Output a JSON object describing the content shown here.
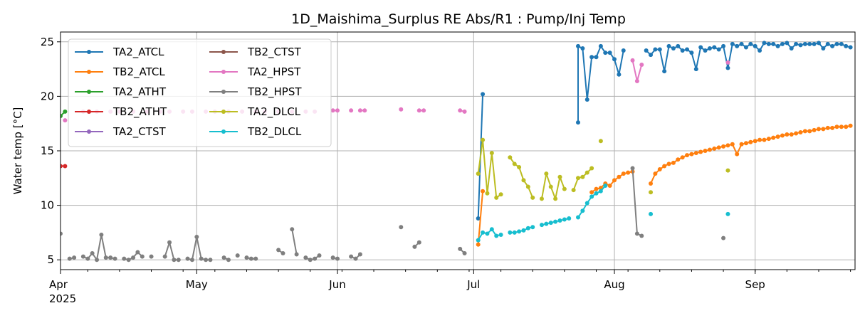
{
  "chart_data": {
    "type": "line",
    "title": "1D_Maishima_Surplus RE Abs/R1 : Pump/Inj Temp",
    "xlabel": "",
    "ylabel": "Water temp [°C]",
    "x_type": "date",
    "xlim": [
      "2025-04-01",
      "2025-09-23"
    ],
    "ylim": [
      4.1,
      25.9
    ],
    "yticks": [
      5,
      10,
      15,
      20,
      25
    ],
    "xticks": [
      {
        "date": "2025-04-01",
        "label": "Apr",
        "sub": "2025"
      },
      {
        "date": "2025-05-01",
        "label": "May",
        "sub": ""
      },
      {
        "date": "2025-06-01",
        "label": "Jun",
        "sub": ""
      },
      {
        "date": "2025-07-01",
        "label": "Jul",
        "sub": ""
      },
      {
        "date": "2025-08-01",
        "label": "Aug",
        "sub": ""
      },
      {
        "date": "2025-09-01",
        "label": "Sep",
        "sub": ""
      }
    ],
    "grid": true,
    "legend_position": "top-left",
    "legend_columns": 2,
    "series": [
      {
        "name": "TA2_ATCL",
        "color": "#1f77b4",
        "points": [
          [
            "2025-07-02",
            8.8
          ],
          [
            "2025-07-03",
            20.2
          ],
          [
            "2025-07-24",
            17.6
          ],
          [
            "2025-07-24",
            24.6
          ],
          [
            "2025-07-25",
            24.4
          ],
          [
            "2025-07-26",
            19.7
          ],
          [
            "2025-07-27",
            23.6
          ],
          [
            "2025-07-28",
            23.6
          ],
          [
            "2025-07-29",
            24.6
          ],
          [
            "2025-07-30",
            24.0
          ],
          [
            "2025-07-31",
            24.0
          ],
          [
            "2025-08-01",
            23.4
          ],
          [
            "2025-08-02",
            22.0
          ],
          [
            "2025-08-03",
            24.2
          ],
          [
            "2025-08-08",
            24.2
          ],
          [
            "2025-08-09",
            23.8
          ],
          [
            "2025-08-10",
            24.3
          ],
          [
            "2025-08-11",
            24.3
          ],
          [
            "2025-08-12",
            22.3
          ],
          [
            "2025-08-13",
            24.6
          ],
          [
            "2025-08-14",
            24.4
          ],
          [
            "2025-08-15",
            24.6
          ],
          [
            "2025-08-16",
            24.2
          ],
          [
            "2025-08-17",
            24.3
          ],
          [
            "2025-08-18",
            24.0
          ],
          [
            "2025-08-19",
            22.5
          ],
          [
            "2025-08-20",
            24.5
          ],
          [
            "2025-08-21",
            24.2
          ],
          [
            "2025-08-22",
            24.4
          ],
          [
            "2025-08-23",
            24.5
          ],
          [
            "2025-08-24",
            24.3
          ],
          [
            "2025-08-25",
            24.6
          ],
          [
            "2025-08-26",
            22.6
          ],
          [
            "2025-08-27",
            24.8
          ],
          [
            "2025-08-28",
            24.6
          ],
          [
            "2025-08-29",
            24.8
          ],
          [
            "2025-08-30",
            24.5
          ],
          [
            "2025-08-31",
            24.8
          ],
          [
            "2025-09-01",
            24.6
          ],
          [
            "2025-09-02",
            24.2
          ],
          [
            "2025-09-03",
            24.9
          ],
          [
            "2025-09-04",
            24.8
          ],
          [
            "2025-09-05",
            24.8
          ],
          [
            "2025-09-06",
            24.6
          ],
          [
            "2025-09-07",
            24.8
          ],
          [
            "2025-09-08",
            24.9
          ],
          [
            "2025-09-09",
            24.4
          ],
          [
            "2025-09-10",
            24.8
          ],
          [
            "2025-09-11",
            24.7
          ],
          [
            "2025-09-12",
            24.8
          ],
          [
            "2025-09-13",
            24.8
          ],
          [
            "2025-09-14",
            24.8
          ],
          [
            "2025-09-15",
            24.9
          ],
          [
            "2025-09-16",
            24.4
          ],
          [
            "2025-09-17",
            24.8
          ],
          [
            "2025-09-18",
            24.6
          ],
          [
            "2025-09-19",
            24.8
          ],
          [
            "2025-09-20",
            24.8
          ],
          [
            "2025-09-21",
            24.6
          ],
          [
            "2025-09-22",
            24.5
          ]
        ]
      },
      {
        "name": "TB2_ATCL",
        "color": "#ff7f0e",
        "points": [
          [
            "2025-07-02",
            6.4
          ],
          [
            "2025-07-03",
            11.3
          ],
          [
            "2025-07-27",
            11.2
          ],
          [
            "2025-07-28",
            11.5
          ],
          [
            "2025-07-29",
            11.6
          ],
          [
            "2025-07-30",
            12.0
          ],
          [
            "2025-07-31",
            11.8
          ],
          [
            "2025-08-01",
            12.3
          ],
          [
            "2025-08-02",
            12.6
          ],
          [
            "2025-08-03",
            12.9
          ],
          [
            "2025-08-04",
            13.0
          ],
          [
            "2025-08-05",
            13.1
          ],
          [
            "2025-08-09",
            12.0
          ],
          [
            "2025-08-10",
            12.9
          ],
          [
            "2025-08-11",
            13.3
          ],
          [
            "2025-08-12",
            13.6
          ],
          [
            "2025-08-13",
            13.8
          ],
          [
            "2025-08-14",
            13.9
          ],
          [
            "2025-08-15",
            14.2
          ],
          [
            "2025-08-16",
            14.4
          ],
          [
            "2025-08-17",
            14.6
          ],
          [
            "2025-08-18",
            14.7
          ],
          [
            "2025-08-19",
            14.8
          ],
          [
            "2025-08-20",
            14.9
          ],
          [
            "2025-08-21",
            15.0
          ],
          [
            "2025-08-22",
            15.1
          ],
          [
            "2025-08-23",
            15.2
          ],
          [
            "2025-08-24",
            15.3
          ],
          [
            "2025-08-25",
            15.4
          ],
          [
            "2025-08-26",
            15.5
          ],
          [
            "2025-08-27",
            15.6
          ],
          [
            "2025-08-28",
            14.7
          ],
          [
            "2025-08-29",
            15.6
          ],
          [
            "2025-08-30",
            15.7
          ],
          [
            "2025-08-31",
            15.8
          ],
          [
            "2025-09-01",
            15.9
          ],
          [
            "2025-09-02",
            16.0
          ],
          [
            "2025-09-03",
            16.0
          ],
          [
            "2025-09-04",
            16.1
          ],
          [
            "2025-09-05",
            16.2
          ],
          [
            "2025-09-06",
            16.3
          ],
          [
            "2025-09-07",
            16.4
          ],
          [
            "2025-09-08",
            16.5
          ],
          [
            "2025-09-09",
            16.5
          ],
          [
            "2025-09-10",
            16.6
          ],
          [
            "2025-09-11",
            16.7
          ],
          [
            "2025-09-12",
            16.8
          ],
          [
            "2025-09-13",
            16.8
          ],
          [
            "2025-09-14",
            16.9
          ],
          [
            "2025-09-15",
            17.0
          ],
          [
            "2025-09-16",
            17.0
          ],
          [
            "2025-09-17",
            17.1
          ],
          [
            "2025-09-18",
            17.1
          ],
          [
            "2025-09-19",
            17.2
          ],
          [
            "2025-09-20",
            17.2
          ],
          [
            "2025-09-21",
            17.2
          ],
          [
            "2025-09-22",
            17.3
          ]
        ]
      },
      {
        "name": "TA2_ATHT",
        "color": "#2ca02c",
        "points": [
          [
            "2025-04-01",
            18.2
          ],
          [
            "2025-04-02",
            18.6
          ]
        ]
      },
      {
        "name": "TB2_ATHT",
        "color": "#d62728",
        "points": [
          [
            "2025-04-01",
            13.6
          ],
          [
            "2025-04-02",
            13.6
          ]
        ]
      },
      {
        "name": "TA2_CTST",
        "color": "#9467bd",
        "points": []
      },
      {
        "name": "TB2_CTST",
        "color": "#8c564b",
        "points": []
      },
      {
        "name": "TA2_HPST",
        "color": "#e377c2",
        "points": [
          [
            "2025-04-02",
            17.8
          ],
          [
            "2025-04-06",
            18.6
          ],
          [
            "2025-04-09",
            18.6
          ],
          [
            "2025-04-12",
            18.6
          ],
          [
            "2025-04-14",
            18.6
          ],
          [
            "2025-04-17",
            18.6
          ],
          [
            "2025-04-20",
            18.6
          ],
          [
            "2025-04-23",
            18.6
          ],
          [
            "2025-04-25",
            18.6
          ],
          [
            "2025-04-28",
            18.6
          ],
          [
            "2025-04-30",
            18.6
          ],
          [
            "2025-05-03",
            18.6
          ],
          [
            "2025-05-05",
            18.6
          ],
          [
            "2025-05-08",
            18.6
          ],
          [
            "2025-05-11",
            18.6
          ],
          [
            "2025-05-14",
            18.6
          ],
          [
            "2025-05-16",
            18.6
          ],
          [
            "2025-05-19",
            18.6
          ],
          [
            "2025-05-22",
            18.6
          ],
          [
            "2025-05-25",
            18.6
          ],
          [
            "2025-05-27",
            18.6
          ],
          [
            "2025-05-31",
            18.7
          ],
          [
            "2025-06-01",
            18.7
          ],
          [
            "2025-06-04",
            18.7
          ],
          [
            "2025-06-06",
            18.7
          ],
          [
            "2025-06-07",
            18.7
          ],
          [
            "2025-06-15",
            18.8
          ],
          [
            "2025-06-19",
            18.7
          ],
          [
            "2025-06-20",
            18.7
          ],
          [
            "2025-06-28",
            18.7
          ],
          [
            "2025-06-29",
            18.6
          ],
          [
            "2025-08-05",
            23.3
          ],
          [
            "2025-08-06",
            21.4
          ],
          [
            "2025-08-07",
            22.9
          ],
          [
            "2025-08-26",
            23.1
          ]
        ]
      },
      {
        "name": "TB2_HPST",
        "color": "#7f7f7f",
        "points": [
          [
            "2025-04-01",
            7.4
          ],
          [
            "2025-04-03",
            5.1
          ],
          [
            "2025-04-04",
            5.2
          ],
          [
            "2025-04-06",
            5.3
          ],
          [
            "2025-04-07",
            5.1
          ],
          [
            "2025-04-08",
            5.6
          ],
          [
            "2025-04-09",
            5.0
          ],
          [
            "2025-04-10",
            7.3
          ],
          [
            "2025-04-11",
            5.2
          ],
          [
            "2025-04-12",
            5.2
          ],
          [
            "2025-04-13",
            5.1
          ],
          [
            "2025-04-15",
            5.1
          ],
          [
            "2025-04-16",
            5.0
          ],
          [
            "2025-04-17",
            5.2
          ],
          [
            "2025-04-18",
            5.7
          ],
          [
            "2025-04-19",
            5.3
          ],
          [
            "2025-04-21",
            5.3
          ],
          [
            "2025-04-24",
            5.3
          ],
          [
            "2025-04-25",
            6.6
          ],
          [
            "2025-04-26",
            5.0
          ],
          [
            "2025-04-27",
            5.0
          ],
          [
            "2025-04-29",
            5.1
          ],
          [
            "2025-04-30",
            5.0
          ],
          [
            "2025-05-01",
            7.1
          ],
          [
            "2025-05-02",
            5.1
          ],
          [
            "2025-05-03",
            5.0
          ],
          [
            "2025-05-04",
            5.0
          ],
          [
            "2025-05-07",
            5.2
          ],
          [
            "2025-05-08",
            5.0
          ],
          [
            "2025-05-10",
            5.4
          ],
          [
            "2025-05-12",
            5.2
          ],
          [
            "2025-05-13",
            5.1
          ],
          [
            "2025-05-14",
            5.1
          ],
          [
            "2025-05-19",
            5.9
          ],
          [
            "2025-05-20",
            5.6
          ],
          [
            "2025-05-22",
            7.8
          ],
          [
            "2025-05-23",
            5.5
          ],
          [
            "2025-05-25",
            5.2
          ],
          [
            "2025-05-26",
            5.0
          ],
          [
            "2025-05-27",
            5.1
          ],
          [
            "2025-05-28",
            5.4
          ],
          [
            "2025-05-31",
            5.2
          ],
          [
            "2025-06-01",
            5.1
          ],
          [
            "2025-06-04",
            5.3
          ],
          [
            "2025-06-05",
            5.1
          ],
          [
            "2025-06-06",
            5.5
          ],
          [
            "2025-06-15",
            8.0
          ],
          [
            "2025-06-18",
            6.2
          ],
          [
            "2025-06-19",
            6.6
          ],
          [
            "2025-06-28",
            6.0
          ],
          [
            "2025-06-29",
            5.6
          ],
          [
            "2025-08-05",
            13.4
          ],
          [
            "2025-08-06",
            7.4
          ],
          [
            "2025-08-07",
            7.2
          ],
          [
            "2025-08-25",
            7.0
          ]
        ]
      },
      {
        "name": "TA2_DLCL",
        "color": "#bcbd22",
        "points": [
          [
            "2025-07-02",
            12.9
          ],
          [
            "2025-07-03",
            16.0
          ],
          [
            "2025-07-04",
            11.1
          ],
          [
            "2025-07-05",
            14.8
          ],
          [
            "2025-07-06",
            10.7
          ],
          [
            "2025-07-07",
            11.0
          ],
          [
            "2025-07-09",
            14.4
          ],
          [
            "2025-07-10",
            13.8
          ],
          [
            "2025-07-11",
            13.5
          ],
          [
            "2025-07-12",
            12.3
          ],
          [
            "2025-07-13",
            11.7
          ],
          [
            "2025-07-14",
            10.7
          ],
          [
            "2025-07-16",
            10.6
          ],
          [
            "2025-07-17",
            12.9
          ],
          [
            "2025-07-18",
            11.7
          ],
          [
            "2025-07-19",
            10.6
          ],
          [
            "2025-07-20",
            12.6
          ],
          [
            "2025-07-21",
            11.5
          ],
          [
            "2025-07-23",
            11.4
          ],
          [
            "2025-07-24",
            12.5
          ],
          [
            "2025-07-25",
            12.6
          ],
          [
            "2025-07-26",
            13.0
          ],
          [
            "2025-07-27",
            13.4
          ],
          [
            "2025-07-29",
            15.9
          ],
          [
            "2025-08-09",
            11.2
          ],
          [
            "2025-08-26",
            13.2
          ]
        ]
      },
      {
        "name": "TB2_DLCL",
        "color": "#17becf",
        "points": [
          [
            "2025-07-02",
            6.8
          ],
          [
            "2025-07-03",
            7.5
          ],
          [
            "2025-07-04",
            7.4
          ],
          [
            "2025-07-05",
            7.8
          ],
          [
            "2025-07-06",
            7.2
          ],
          [
            "2025-07-07",
            7.3
          ],
          [
            "2025-07-09",
            7.5
          ],
          [
            "2025-07-10",
            7.5
          ],
          [
            "2025-07-11",
            7.6
          ],
          [
            "2025-07-12",
            7.7
          ],
          [
            "2025-07-13",
            7.9
          ],
          [
            "2025-07-14",
            8.0
          ],
          [
            "2025-07-16",
            8.2
          ],
          [
            "2025-07-17",
            8.3
          ],
          [
            "2025-07-18",
            8.4
          ],
          [
            "2025-07-19",
            8.5
          ],
          [
            "2025-07-20",
            8.6
          ],
          [
            "2025-07-21",
            8.7
          ],
          [
            "2025-07-22",
            8.8
          ],
          [
            "2025-07-24",
            8.9
          ],
          [
            "2025-07-25",
            9.5
          ],
          [
            "2025-07-26",
            10.2
          ],
          [
            "2025-07-27",
            10.8
          ],
          [
            "2025-07-28",
            11.1
          ],
          [
            "2025-07-29",
            11.3
          ],
          [
            "2025-07-30",
            11.8
          ],
          [
            "2025-08-09",
            9.2
          ],
          [
            "2025-08-26",
            9.2
          ]
        ]
      }
    ]
  }
}
